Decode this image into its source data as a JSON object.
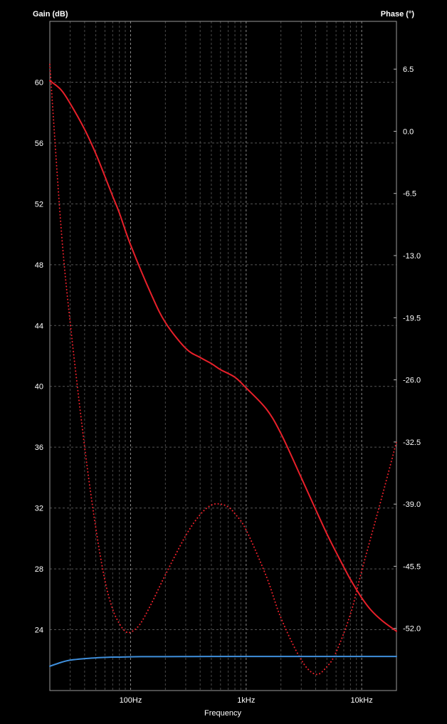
{
  "chart_data": {
    "type": "line",
    "x_scale": "log",
    "xlabel": "Frequency",
    "ylabel_left": "Gain (dB)",
    "ylabel_right": "Phase (°)",
    "xlim": [
      20,
      20000
    ],
    "ylim_left": [
      20,
      64
    ],
    "ylim_right": [
      -58.5,
      11.5
    ],
    "x_tick_values": [
      100,
      1000,
      10000
    ],
    "x_tick_labels": [
      "100Hz",
      "1kHz",
      "10kHz"
    ],
    "left_ticks": [
      24,
      28,
      32,
      36,
      40,
      44,
      48,
      52,
      56,
      60
    ],
    "right_ticks": [
      -52.0,
      -45.5,
      -39.0,
      -32.5,
      -26.0,
      -19.5,
      -13.0,
      -6.5,
      0.0,
      6.5
    ],
    "grid": true,
    "series": [
      {
        "axis": "left",
        "style": "solid",
        "color": "#e8202a",
        "x": [
          20,
          25,
          30,
          40,
          50,
          60,
          70,
          80,
          100,
          150,
          200,
          300,
          400,
          500,
          600,
          800,
          1000,
          1500,
          2000,
          3000,
          4000,
          5000,
          6000,
          8000,
          10000,
          12000,
          15000,
          20000
        ],
        "values": [
          60.1,
          59.5,
          58.6,
          56.9,
          55.3,
          53.8,
          52.5,
          51.4,
          49.3,
          46.1,
          44.2,
          42.5,
          41.9,
          41.5,
          41.1,
          40.6,
          39.9,
          38.5,
          36.9,
          34.0,
          31.9,
          30.3,
          29.1,
          27.3,
          26.1,
          25.3,
          24.6,
          23.9
        ]
      },
      {
        "axis": "right",
        "style": "dotted",
        "color": "#e8202a",
        "x": [
          20,
          25,
          30,
          40,
          50,
          60,
          70,
          80,
          90,
          100,
          120,
          150,
          200,
          300,
          400,
          500,
          600,
          700,
          800,
          1000,
          1500,
          2000,
          3000,
          4000,
          5000,
          6000,
          8000,
          10000,
          15000,
          20000
        ],
        "values": [
          7.0,
          -10.0,
          -20.0,
          -33.0,
          -41.5,
          -47.0,
          -50.0,
          -51.5,
          -52.3,
          -52.4,
          -51.6,
          -49.5,
          -46.4,
          -42.3,
          -40.1,
          -39.1,
          -39.0,
          -39.3,
          -40.0,
          -41.7,
          -46.6,
          -50.9,
          -55.3,
          -56.8,
          -56.0,
          -54.5,
          -50.5,
          -46.0,
          -38.2,
          -32.5
        ]
      },
      {
        "axis": "left",
        "style": "solid",
        "color": "#3f8fdc",
        "x": [
          20,
          25,
          30,
          40,
          50,
          60,
          70,
          80,
          100,
          150,
          200,
          500,
          1000,
          2000,
          5000,
          10000,
          20000
        ],
        "values": [
          21.6,
          21.85,
          22.0,
          22.1,
          22.15,
          22.18,
          22.2,
          22.2,
          22.22,
          22.23,
          22.23,
          22.24,
          22.24,
          22.24,
          22.24,
          22.24,
          22.24
        ]
      }
    ]
  }
}
